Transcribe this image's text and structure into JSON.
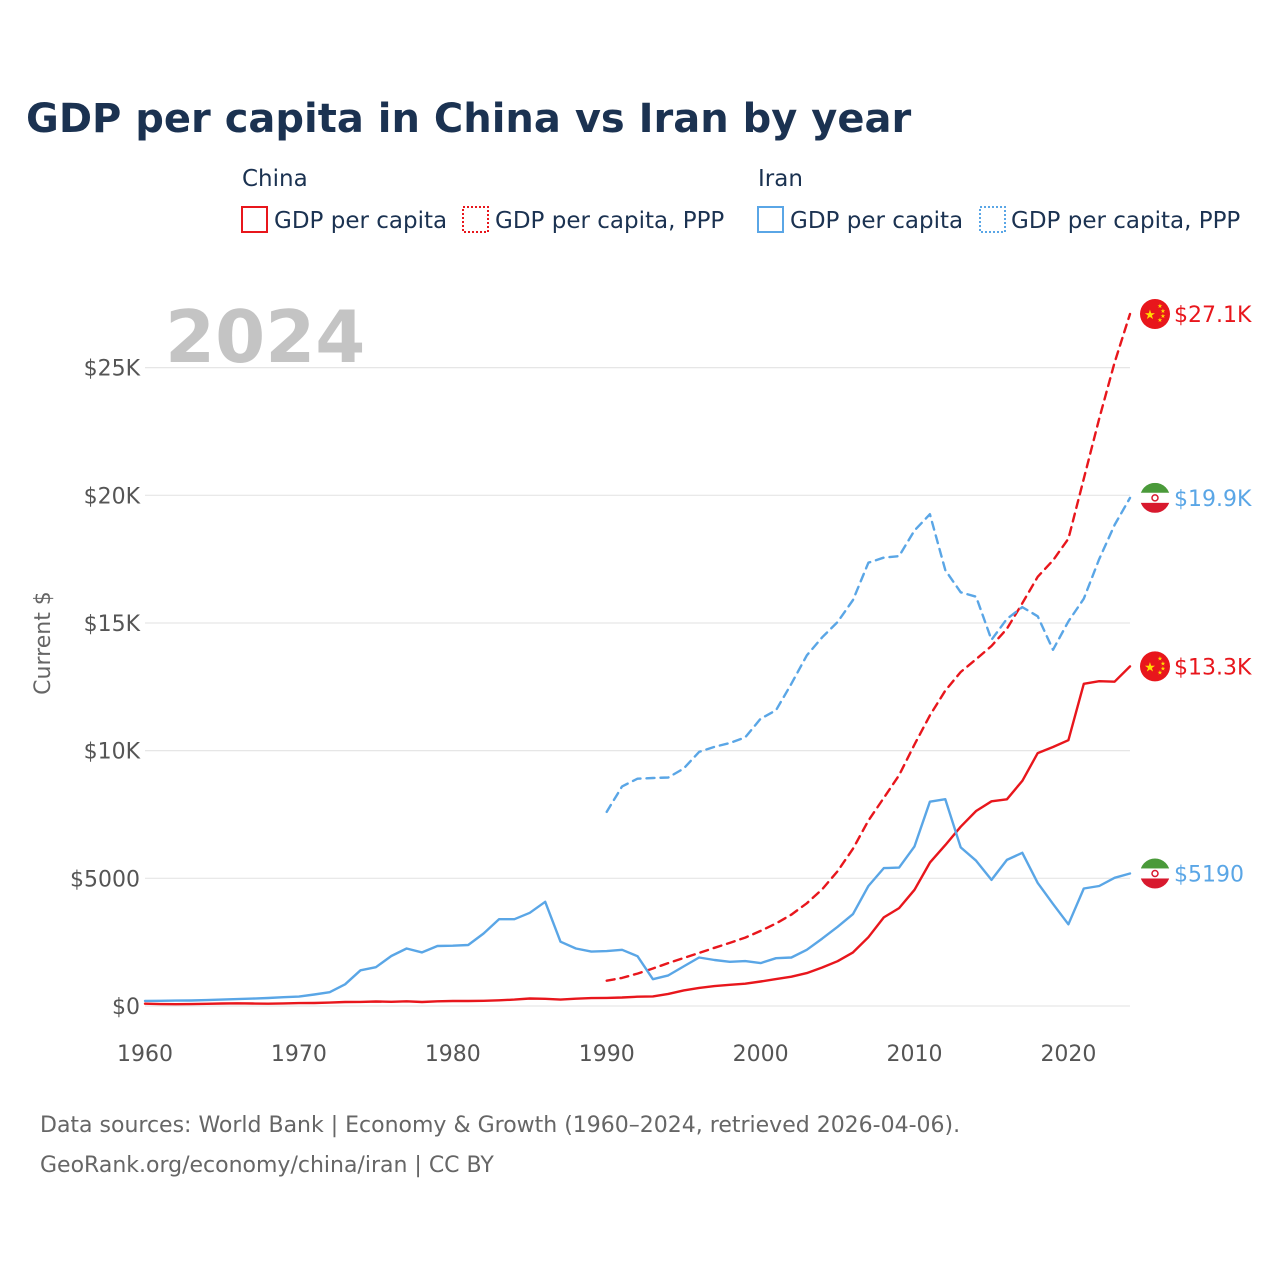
{
  "title": "GDP per capita in China vs Iran by year",
  "legend": {
    "groups": [
      {
        "name": "China",
        "color": "#e8161c",
        "items": [
          {
            "label": "GDP per capita",
            "style": "solid"
          },
          {
            "label": "GDP per capita, PPP",
            "style": "dotted"
          }
        ]
      },
      {
        "name": "Iran",
        "color": "#5aa6e6",
        "items": [
          {
            "label": "GDP per capita",
            "style": "solid"
          },
          {
            "label": "GDP per capita, PPP",
            "style": "dotted"
          }
        ]
      }
    ]
  },
  "year_watermark": "2024",
  "source_line1": "Data sources: World Bank | Economy & Growth (1960–2024, retrieved 2026-04-06).",
  "source_line2": "GeoRank.org/economy/china/iran | CC BY",
  "chart_data": {
    "type": "line",
    "title": "GDP per capita in China vs Iran by year",
    "xlabel": "",
    "ylabel": "Current $",
    "xlim": [
      1960,
      2024
    ],
    "ylim": [
      0,
      27100
    ],
    "x_ticks": [
      1960,
      1970,
      1980,
      1990,
      2000,
      2010,
      2020
    ],
    "y_ticks": [
      {
        "value": 0,
        "label": "$0"
      },
      {
        "value": 5000,
        "label": "$5000"
      },
      {
        "value": 10000,
        "label": "$10K"
      },
      {
        "value": 15000,
        "label": "$15K"
      },
      {
        "value": 20000,
        "label": "$20K"
      },
      {
        "value": 25000,
        "label": "$25K"
      }
    ],
    "grid": true,
    "series": [
      {
        "name": "China GDP per capita",
        "country": "China",
        "color": "#e8161c",
        "dash": "solid",
        "end_label": "$13.3K",
        "x": [
          1960,
          1961,
          1962,
          1963,
          1964,
          1965,
          1966,
          1967,
          1968,
          1969,
          1970,
          1971,
          1972,
          1973,
          1974,
          1975,
          1976,
          1977,
          1978,
          1979,
          1980,
          1981,
          1982,
          1983,
          1984,
          1985,
          1986,
          1987,
          1988,
          1989,
          1990,
          1991,
          1992,
          1993,
          1994,
          1995,
          1996,
          1997,
          1998,
          1999,
          2000,
          2001,
          2002,
          2003,
          2004,
          2005,
          2006,
          2007,
          2008,
          2009,
          2010,
          2011,
          2012,
          2013,
          2014,
          2015,
          2016,
          2017,
          2018,
          2019,
          2020,
          2021,
          2022,
          2023,
          2024
        ],
        "values": [
          90,
          76,
          71,
          74,
          85,
          98,
          104,
          97,
          91,
          100,
          113,
          119,
          132,
          157,
          160,
          178,
          165,
          185,
          156,
          184,
          195,
          197,
          203,
          225,
          251,
          294,
          282,
          252,
          284,
          311,
          318,
          333,
          366,
          377,
          473,
          610,
          709,
          781,
          829,
          873,
          959,
          1053,
          1149,
          1289,
          1509,
          1753,
          2099,
          2693,
          3468,
          3832,
          4550,
          5614,
          6301,
          7020,
          7636,
          8016,
          8094,
          8817,
          9905,
          10144,
          10409,
          12618,
          12720,
          12700,
          13300
        ]
      },
      {
        "name": "China GDP per capita, PPP",
        "country": "China",
        "color": "#e8161c",
        "dash": "dashed",
        "end_label": "$27.1K",
        "x": [
          1990,
          1991,
          1992,
          1993,
          1994,
          1995,
          1996,
          1997,
          1998,
          1999,
          2000,
          2001,
          2002,
          2003,
          2004,
          2005,
          2006,
          2007,
          2008,
          2009,
          2010,
          2011,
          2012,
          2013,
          2014,
          2015,
          2016,
          2017,
          2018,
          2019,
          2020,
          2021,
          2022,
          2023,
          2024
        ],
        "values": [
          990,
          1100,
          1270,
          1470,
          1680,
          1880,
          2080,
          2280,
          2470,
          2680,
          2940,
          3230,
          3580,
          4020,
          4570,
          5280,
          6160,
          7260,
          8150,
          9040,
          10240,
          11380,
          12350,
          13080,
          13580,
          14100,
          14770,
          15770,
          16810,
          17450,
          18300,
          20650,
          23000,
          25200,
          27100
        ]
      },
      {
        "name": "Iran GDP per capita",
        "country": "Iran",
        "color": "#5aa6e6",
        "dash": "solid",
        "end_label": "$5190",
        "x": [
          1960,
          1961,
          1962,
          1963,
          1964,
          1965,
          1966,
          1967,
          1968,
          1969,
          1970,
          1971,
          1972,
          1973,
          1974,
          1975,
          1976,
          1977,
          1978,
          1979,
          1980,
          1981,
          1982,
          1983,
          1984,
          1985,
          1986,
          1987,
          1988,
          1989,
          1990,
          1991,
          1992,
          1993,
          1994,
          1995,
          1996,
          1997,
          1998,
          1999,
          2000,
          2001,
          2002,
          2003,
          2004,
          2005,
          2006,
          2007,
          2008,
          2009,
          2010,
          2011,
          2012,
          2013,
          2014,
          2015,
          2016,
          2017,
          2018,
          2019,
          2020,
          2021,
          2022,
          2023,
          2024
        ],
        "values": [
          200,
          205,
          210,
          215,
          230,
          250,
          270,
          290,
          315,
          345,
          370,
          450,
          540,
          850,
          1400,
          1520,
          1960,
          2250,
          2100,
          2350,
          2360,
          2390,
          2840,
          3400,
          3400,
          3650,
          4080,
          2520,
          2250,
          2130,
          2150,
          2200,
          1950,
          1050,
          1200,
          1550,
          1900,
          1800,
          1730,
          1760,
          1680,
          1870,
          1900,
          2200,
          2640,
          3100,
          3600,
          4700,
          5400,
          5420,
          6250,
          8000,
          8100,
          6210,
          5690,
          4940,
          5720,
          6000,
          4820,
          4000,
          3200,
          4600,
          4700,
          5020,
          5190
        ]
      },
      {
        "name": "Iran GDP per capita, PPP",
        "country": "Iran",
        "color": "#5aa6e6",
        "dash": "dashed",
        "end_label": "$19.9K",
        "x": [
          1990,
          1991,
          1992,
          1993,
          1994,
          1995,
          1996,
          1997,
          1998,
          1999,
          2000,
          2001,
          2002,
          2003,
          2004,
          2005,
          2006,
          2007,
          2008,
          2009,
          2010,
          2011,
          2012,
          2013,
          2014,
          2015,
          2016,
          2017,
          2018,
          2019,
          2020,
          2021,
          2022,
          2023,
          2024
        ],
        "values": [
          7600,
          8600,
          8900,
          8930,
          8950,
          9300,
          9950,
          10150,
          10300,
          10520,
          11250,
          11580,
          12620,
          13730,
          14440,
          15040,
          15900,
          17360,
          17560,
          17620,
          18620,
          19260,
          17070,
          16200,
          16030,
          14340,
          15160,
          15620,
          15260,
          13950,
          15060,
          15950,
          17500,
          18840,
          19900
        ]
      }
    ]
  }
}
